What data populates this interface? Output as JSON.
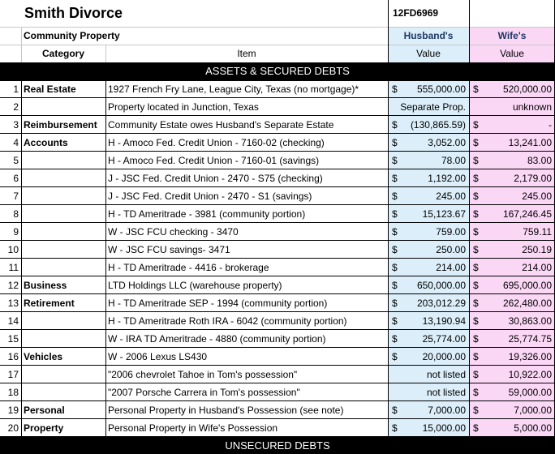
{
  "title": "Smith Divorce",
  "case_number": "12FD6969",
  "section_label": "Community Property",
  "headers": {
    "category": "Category",
    "item": "Item",
    "husband_line1": "Husband's",
    "husband_line2": "Value",
    "wife_line1": "Wife's",
    "wife_line2": "Value"
  },
  "band_assets": "ASSETS & SECURED DEBTS",
  "band_unsecured": "UNSECURED DEBTS",
  "colors": {
    "husband_col": "#dbeef9",
    "wife_col": "#fbd7f6",
    "band": "#000000"
  },
  "rows": [
    {
      "num": "1",
      "category": "Real Estate",
      "item": "1927 French Fry Lane, League City, Texas (no mortgage)*",
      "h_sym": "$",
      "h_val": "555,000.00",
      "w_sym": "$",
      "w_val": "520,000.00"
    },
    {
      "num": "2",
      "category": "",
      "item": "Property located in Junction, Texas",
      "h_sym": "",
      "h_val": "Separate Prop.",
      "w_sym": "",
      "w_val": "unknown"
    },
    {
      "num": "3",
      "category": "Reimbursement",
      "item": "Community Estate owes Husband's Separate Estate",
      "h_sym": "$",
      "h_val": "(130,865.59)",
      "w_sym": "$",
      "w_val": "-"
    },
    {
      "num": "4",
      "category": "Accounts",
      "item": "H - Amoco Fed. Credit Union - 7160-02  (checking)",
      "h_sym": "$",
      "h_val": "3,052.00",
      "w_sym": "$",
      "w_val": "13,241.00"
    },
    {
      "num": "5",
      "category": "",
      "item": "H - Amoco Fed. Credit Union - 7160-01  (savings)",
      "h_sym": "$",
      "h_val": "78.00",
      "w_sym": "$",
      "w_val": "83.00"
    },
    {
      "num": "6",
      "category": "",
      "item": "J - JSC Fed. Credit Union - 2470 - S75 (checking)",
      "h_sym": "$",
      "h_val": "1,192.00",
      "w_sym": "$",
      "w_val": "2,179.00"
    },
    {
      "num": "7",
      "category": "",
      "item": "J - JSC Fed. Credit Union - 2470 - S1 (savings)",
      "h_sym": "$",
      "h_val": "245.00",
      "w_sym": "$",
      "w_val": "245.00"
    },
    {
      "num": "8",
      "category": "",
      "item": "H - TD Ameritrade - 3981 (community portion)",
      "h_sym": "$",
      "h_val": "15,123.67",
      "w_sym": "$",
      "w_val": "167,246.45"
    },
    {
      "num": "9",
      "category": "",
      "item": "W - JSC FCU checking - 3470",
      "h_sym": "$",
      "h_val": "759.00",
      "w_sym": "$",
      "w_val": "759.11"
    },
    {
      "num": "10",
      "category": "",
      "item": "W - JSC FCU savings- 3471",
      "h_sym": "$",
      "h_val": "250.00",
      "w_sym": "$",
      "w_val": "250.19"
    },
    {
      "num": "11",
      "category": "",
      "item": "H - TD Ameritrade - 4416 - brokerage",
      "h_sym": "$",
      "h_val": "214.00",
      "w_sym": "$",
      "w_val": "214.00"
    },
    {
      "num": "12",
      "category": "Business",
      "item": "LTD Holdings LLC (warehouse property)",
      "h_sym": "$",
      "h_val": "650,000.00",
      "w_sym": "$",
      "w_val": "695,000.00"
    },
    {
      "num": "13",
      "category": "Retirement",
      "item": "H - TD Ameritrade SEP - 1994 (community portion)",
      "h_sym": "$",
      "h_val": "203,012.29",
      "w_sym": "$",
      "w_val": "262,480.00"
    },
    {
      "num": "14",
      "category": "",
      "item": "H - TD Ameritrade Roth IRA - 6042 (community portion)",
      "h_sym": "$",
      "h_val": "13,190.94",
      "w_sym": "$",
      "w_val": "30,863.00"
    },
    {
      "num": "15",
      "category": "",
      "item": "W - IRA TD Ameritrade - 4880 (community portion)",
      "h_sym": "$",
      "h_val": "25,774.00",
      "w_sym": "$",
      "w_val": "25,774.75"
    },
    {
      "num": "16",
      "category": "Vehicles",
      "item": "W - 2006 Lexus LS430",
      "h_sym": "$",
      "h_val": "20,000.00",
      "w_sym": "$",
      "w_val": "19,326.00"
    },
    {
      "num": "17",
      "category": "",
      "item": "\"2006 chevrolet Tahoe in Tom's possession\"",
      "h_sym": "",
      "h_val": "not listed",
      "w_sym": "$",
      "w_val": "10,922.00"
    },
    {
      "num": "18",
      "category": "",
      "item": "\"2007 Porsche Carrera in Tom's possession\"",
      "h_sym": "",
      "h_val": "not listed",
      "w_sym": "$",
      "w_val": "59,000.00"
    },
    {
      "num": "19",
      "category": "Personal",
      "item": "Personal Property in Husband's Possession (see note)",
      "h_sym": "$",
      "h_val": "7,000.00",
      "w_sym": "$",
      "w_val": "7,000.00"
    },
    {
      "num": "20",
      "category": "Property",
      "item": "Personal Property in Wife's Possession",
      "h_sym": "$",
      "h_val": "15,000.00",
      "w_sym": "$",
      "w_val": "5,000.00"
    }
  ]
}
